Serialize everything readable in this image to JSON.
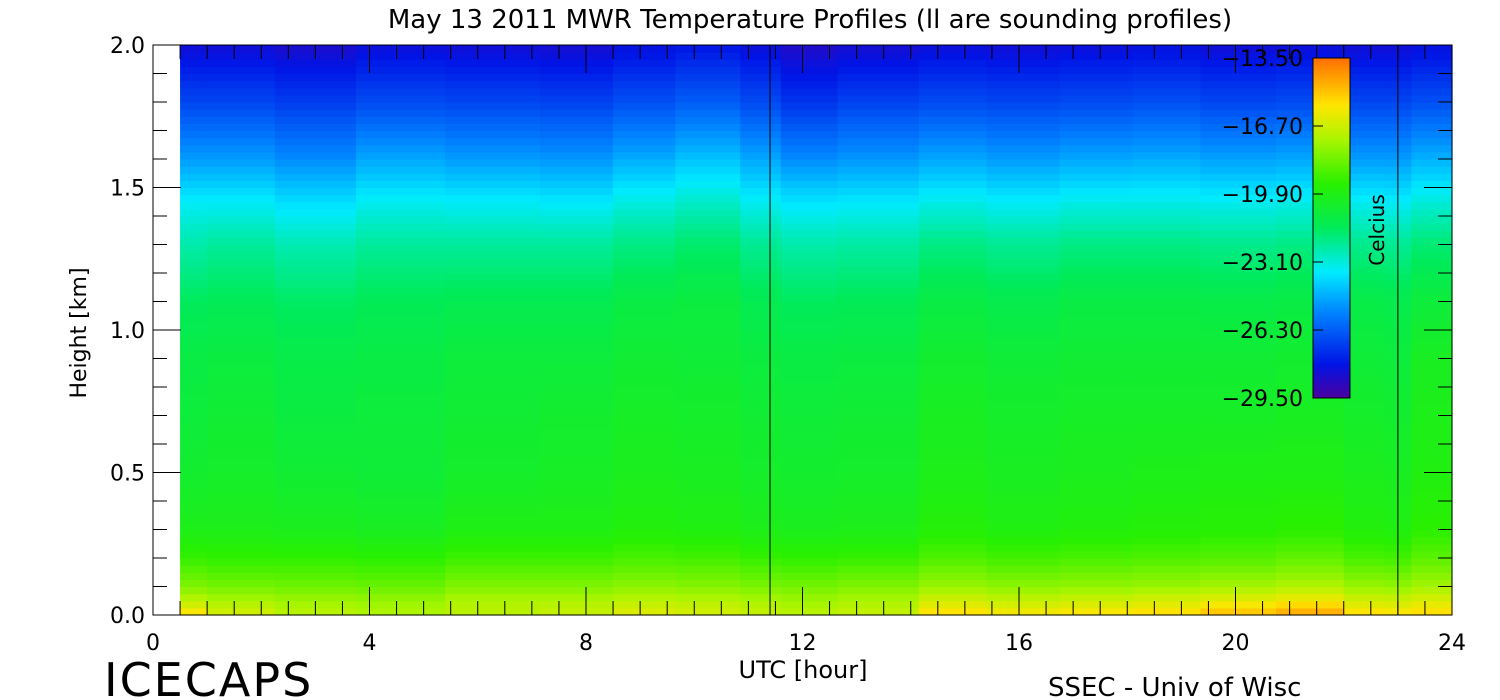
{
  "chart_data": {
    "type": "heatmap",
    "title": "May 13 2011 MWR Temperature Profiles (ll are sounding profiles)",
    "xlabel": "UTC [hour]",
    "ylabel": "Height [km]",
    "xlim": [
      0,
      24
    ],
    "ylim": [
      0,
      2.0
    ],
    "x_ticks": [
      "0",
      "4",
      "8",
      "12",
      "16",
      "20",
      "24"
    ],
    "y_ticks": [
      "0.0",
      "0.5",
      "1.0",
      "1.5",
      "2.0"
    ],
    "colorbar": {
      "label": "Celcius",
      "range": [
        -29.5,
        -13.5
      ],
      "ticks": [
        "-13.50",
        "-16.70",
        "-19.90",
        "-23.10",
        "-26.30",
        "-29.50"
      ]
    },
    "data_start_hour": 0.5,
    "sounding_profiles_utc": [
      11.4,
      23.0
    ],
    "heights_km": [
      0.0,
      0.05,
      0.1,
      0.2,
      0.3,
      0.5,
      0.7,
      0.9,
      1.1,
      1.3,
      1.45,
      1.6,
      1.8,
      2.0
    ],
    "profiles": [
      {
        "utc": 0.5,
        "temps": [
          -15.5,
          -17.0,
          -18.0,
          -19.2,
          -20.0,
          -20.5,
          -20.8,
          -21.0,
          -21.5,
          -22.5,
          -23.5,
          -25.0,
          -26.8,
          -28.3
        ]
      },
      {
        "utc": 1.5,
        "temps": [
          -16.5,
          -17.3,
          -18.2,
          -19.3,
          -20.0,
          -20.4,
          -20.6,
          -20.9,
          -21.4,
          -22.3,
          -23.5,
          -25.0,
          -26.8,
          -28.3
        ]
      },
      {
        "utc": 3.0,
        "temps": [
          -17.0,
          -17.5,
          -18.3,
          -19.3,
          -20.1,
          -20.6,
          -20.9,
          -21.1,
          -21.6,
          -22.6,
          -23.8,
          -25.3,
          -27.0,
          -28.5
        ]
      },
      {
        "utc": 4.5,
        "temps": [
          -17.2,
          -17.6,
          -18.4,
          -19.4,
          -20.2,
          -20.7,
          -20.8,
          -21.0,
          -21.4,
          -22.3,
          -23.4,
          -24.8,
          -26.7,
          -28.2
        ]
      },
      {
        "utc": 6.3,
        "temps": [
          -17.0,
          -17.2,
          -18.0,
          -19.1,
          -19.9,
          -20.4,
          -20.6,
          -20.8,
          -21.3,
          -22.3,
          -23.5,
          -25.0,
          -26.8,
          -28.3
        ]
      },
      {
        "utc": 8.0,
        "temps": [
          -16.8,
          -17.2,
          -18.0,
          -19.1,
          -19.9,
          -20.3,
          -20.5,
          -20.8,
          -21.3,
          -22.3,
          -23.6,
          -25.1,
          -26.9,
          -28.4
        ]
      },
      {
        "utc": 9.0,
        "temps": [
          -16.3,
          -17.0,
          -17.8,
          -18.9,
          -19.7,
          -20.1,
          -20.3,
          -20.6,
          -21.0,
          -22.0,
          -23.2,
          -24.7,
          -26.6,
          -28.1
        ]
      },
      {
        "utc": 10.3,
        "temps": [
          -16.5,
          -17.1,
          -17.9,
          -19.0,
          -19.8,
          -20.2,
          -20.4,
          -20.7,
          -20.9,
          -21.7,
          -22.9,
          -24.3,
          -26.3,
          -27.9
        ]
      },
      {
        "utc": 11.4,
        "temps": [
          -16.8,
          -17.3,
          -18.1,
          -19.2,
          -20.0,
          -20.4,
          -20.6,
          -20.9,
          -21.3,
          -22.2,
          -23.4,
          -24.8,
          -26.7,
          -28.2
        ]
      },
      {
        "utc": 11.8,
        "temps": [
          -17.0,
          -17.5,
          -18.2,
          -19.3,
          -20.1,
          -20.5,
          -20.7,
          -21.0,
          -21.5,
          -22.5,
          -23.7,
          -25.3,
          -27.2,
          -28.6
        ]
      },
      {
        "utc": 13.5,
        "temps": [
          -16.8,
          -17.3,
          -18.0,
          -19.2,
          -20.0,
          -20.4,
          -20.6,
          -20.9,
          -21.4,
          -22.4,
          -23.6,
          -25.1,
          -26.9,
          -28.4
        ]
      },
      {
        "utc": 14.8,
        "temps": [
          -15.4,
          -16.6,
          -17.6,
          -18.8,
          -19.6,
          -20.0,
          -20.2,
          -20.5,
          -21.0,
          -22.0,
          -23.3,
          -24.8,
          -26.7,
          -28.2
        ]
      },
      {
        "utc": 16.0,
        "temps": [
          -15.8,
          -16.8,
          -17.8,
          -19.0,
          -19.8,
          -20.2,
          -20.4,
          -20.7,
          -21.2,
          -22.2,
          -23.5,
          -25.0,
          -26.8,
          -28.3
        ]
      },
      {
        "utc": 17.5,
        "temps": [
          -15.6,
          -16.7,
          -17.7,
          -18.9,
          -19.7,
          -20.1,
          -20.3,
          -20.6,
          -21.0,
          -22.0,
          -23.3,
          -24.8,
          -26.7,
          -28.2
        ]
      },
      {
        "utc": 18.7,
        "temps": [
          -15.4,
          -16.5,
          -17.6,
          -18.8,
          -19.6,
          -20.0,
          -20.3,
          -20.6,
          -21.0,
          -22.0,
          -23.3,
          -24.7,
          -26.6,
          -28.1
        ]
      },
      {
        "utc": 20.0,
        "temps": [
          -14.9,
          -16.2,
          -17.4,
          -18.7,
          -19.5,
          -19.9,
          -20.3,
          -20.6,
          -21.1,
          -22.1,
          -23.4,
          -24.9,
          -26.8,
          -28.3
        ]
      },
      {
        "utc": 21.5,
        "temps": [
          -14.4,
          -15.9,
          -17.2,
          -18.5,
          -19.4,
          -19.9,
          -20.2,
          -20.5,
          -21.0,
          -22.0,
          -23.3,
          -24.8,
          -26.7,
          -28.2
        ]
      },
      {
        "utc": 22.5,
        "temps": [
          -15.4,
          -16.6,
          -17.6,
          -18.9,
          -19.7,
          -20.1,
          -20.4,
          -20.7,
          -21.1,
          -22.1,
          -23.4,
          -25.0,
          -26.8,
          -28.3
        ]
      },
      {
        "utc": 23.0,
        "temps": [
          -15.6,
          -16.7,
          -17.7,
          -19.0,
          -19.8,
          -20.2,
          -20.5,
          -20.8,
          -21.2,
          -22.2,
          -23.5,
          -25.0,
          -26.8,
          -28.3
        ]
      },
      {
        "utc": 23.5,
        "temps": [
          -15.4,
          -16.4,
          -17.4,
          -18.6,
          -19.4,
          -19.8,
          -20.0,
          -20.2,
          -20.8,
          -21.8,
          -23.1,
          -24.6,
          -26.6,
          -28.1
        ]
      }
    ]
  },
  "footer": {
    "left_logo": "ICECAPS",
    "right_credit": "SSEC - Univ of Wisc"
  }
}
